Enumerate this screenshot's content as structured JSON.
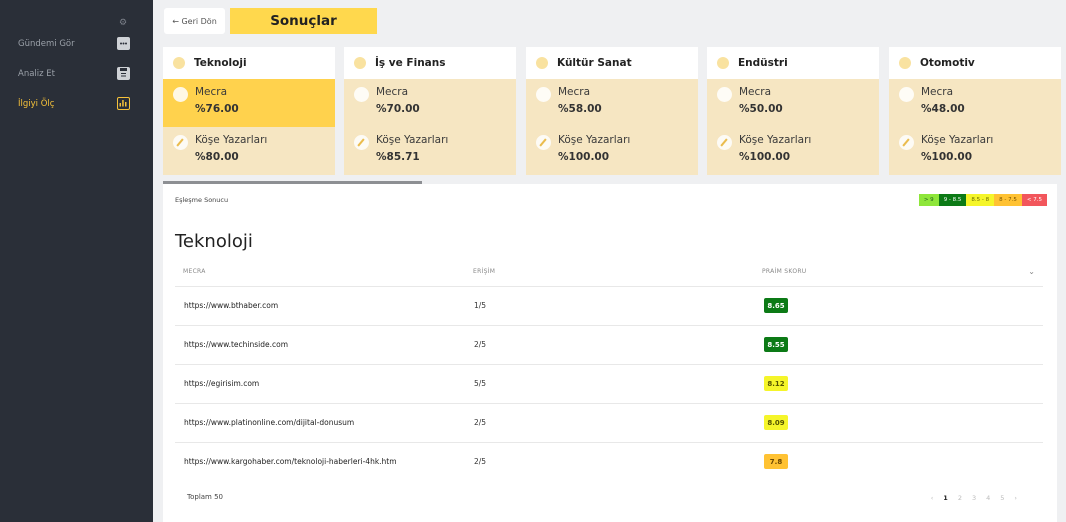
{
  "sidebar": {
    "items": [
      {
        "label": "Gündemi Gör",
        "icon": "chat-icon"
      },
      {
        "label": "Analiz Et",
        "icon": "clipboard-icon"
      },
      {
        "label": "İlgiyi Ölç",
        "icon": "bar-chart-icon",
        "active": true
      }
    ]
  },
  "topbar": {
    "back_label": "← Geri Dön",
    "title": "Sonuçlar"
  },
  "categories": [
    {
      "title": "Teknoloji",
      "media_label": "Mecra",
      "media_value": "%76.00",
      "columnist_label": "Köşe Yazarları",
      "columnist_value": "%80.00"
    },
    {
      "title": "İş ve Finans",
      "media_label": "Mecra",
      "media_value": "%70.00",
      "columnist_label": "Köşe Yazarları",
      "columnist_value": "%85.71"
    },
    {
      "title": "Kültür Sanat",
      "media_label": "Mecra",
      "media_value": "%58.00",
      "columnist_label": "Köşe Yazarları",
      "columnist_value": "%100.00"
    },
    {
      "title": "Endüstri",
      "media_label": "Mecra",
      "media_value": "%50.00",
      "columnist_label": "Köşe Yazarları",
      "columnist_value": "%100.00"
    },
    {
      "title": "Otomotiv",
      "media_label": "Mecra",
      "media_value": "%48.00",
      "columnist_label": "Köşe Yazarları",
      "columnist_value": "%100.00"
    }
  ],
  "panel": {
    "match_label": "Eşleşme Sonucu",
    "legend": [
      {
        "label": "> 9",
        "bg": "#8ee63a",
        "fg": "#1c5d1c"
      },
      {
        "label": "9 - 8.5",
        "bg": "#0c7a16",
        "fg": "#ffffff"
      },
      {
        "label": "8.5 - 8",
        "bg": "#f5f52a",
        "fg": "#6b6b00"
      },
      {
        "label": "8 - 7.5",
        "bg": "#ffc233",
        "fg": "#7a5300"
      },
      {
        "label": "< 7.5",
        "bg": "#f2565c",
        "fg": "#ffffff"
      }
    ],
    "section_title": "Teknoloji",
    "columns": {
      "media": "MECRA",
      "reach": "ERİŞİM",
      "score": "PRAİM SKORU"
    },
    "rows": [
      {
        "url": "https://www.bthaber.com",
        "reach": "1/5",
        "score": "8.65",
        "score_bg": "#0c7a16",
        "score_fg": "#ffffff"
      },
      {
        "url": "https://www.techinside.com",
        "reach": "2/5",
        "score": "8.55",
        "score_bg": "#0c7a16",
        "score_fg": "#ffffff"
      },
      {
        "url": "https://egirisim.com",
        "reach": "5/5",
        "score": "8.12",
        "score_bg": "#f5f52a",
        "score_fg": "#555500"
      },
      {
        "url": "https://www.platinonline.com/dijital-donusum",
        "reach": "2/5",
        "score": "8.09",
        "score_bg": "#f5f52a",
        "score_fg": "#555500"
      },
      {
        "url": "https://www.kargohaber.com/teknoloji-haberleri-4hk.htm",
        "reach": "2/5",
        "score": "7.8",
        "score_bg": "#ffc233",
        "score_fg": "#6a4600"
      }
    ],
    "total_label": "Toplam 50",
    "pagination": {
      "prev": "‹",
      "pages": [
        "1",
        "2",
        "3",
        "4",
        "5"
      ],
      "current": "1",
      "next": "›"
    }
  }
}
